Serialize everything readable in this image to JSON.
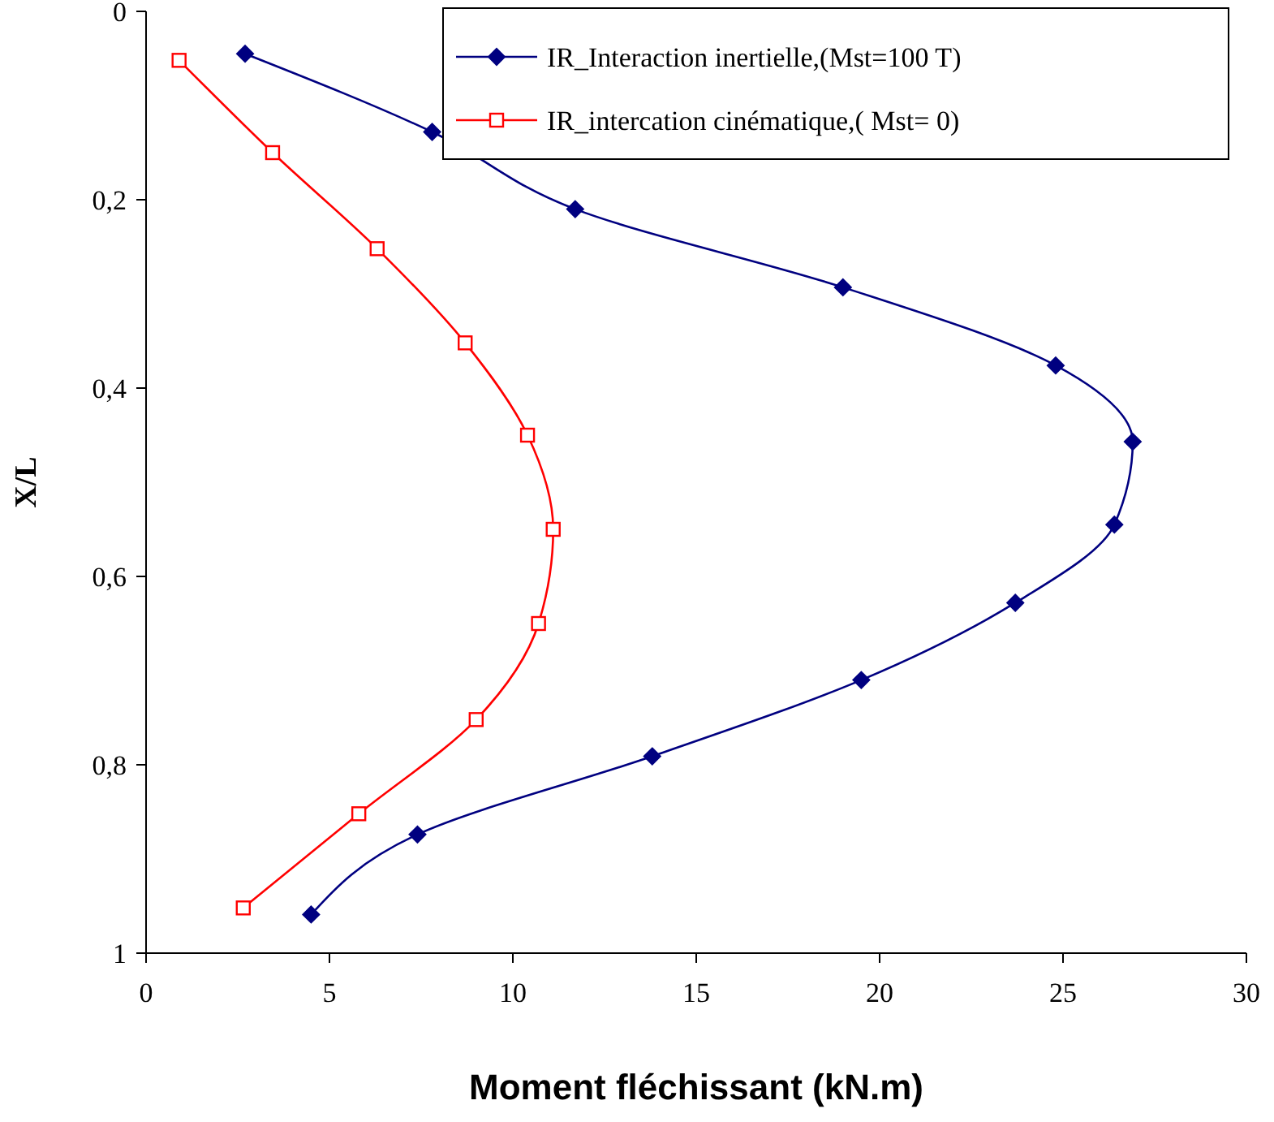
{
  "chart_data": {
    "type": "line",
    "xlabel": "Moment fléchissant (kN.m)",
    "ylabel": "X/L",
    "xlim": [
      0,
      30
    ],
    "xticks": [
      0,
      5,
      10,
      15,
      20,
      25,
      30
    ],
    "ylim": [
      1,
      0
    ],
    "yticks": [
      0,
      {
        "value": 0.2,
        "label": "0,2"
      },
      {
        "value": 0.4,
        "label": "0,4"
      },
      {
        "value": 0.6,
        "label": "0,6"
      },
      {
        "value": 0.8,
        "label": "0,8"
      },
      1
    ],
    "grid": false,
    "legend": "top right",
    "line_style": "solid",
    "series": [
      {
        "name": "IR_Interaction inertielle,(Mst=100 T)",
        "color": "#000080",
        "marker": "diamond",
        "x": [
          2.7,
          7.8,
          11.7,
          19.0,
          24.8,
          26.9,
          26.4,
          23.7,
          19.5,
          13.8,
          7.4,
          4.5
        ],
        "values": [
          0.045,
          0.128,
          0.21,
          0.293,
          0.376,
          0.457,
          0.545,
          0.628,
          0.71,
          0.791,
          0.874,
          0.959
        ]
      },
      {
        "name": "IR_intercation cinématique,( Mst= 0)",
        "color": "#ff0000",
        "marker": "square",
        "x": [
          0.9,
          3.45,
          6.3,
          8.7,
          10.4,
          11.1,
          10.7,
          9.0,
          5.8,
          2.65
        ],
        "values": [
          0.052,
          0.15,
          0.252,
          0.352,
          0.45,
          0.55,
          0.65,
          0.752,
          0.852,
          0.952
        ]
      }
    ]
  }
}
